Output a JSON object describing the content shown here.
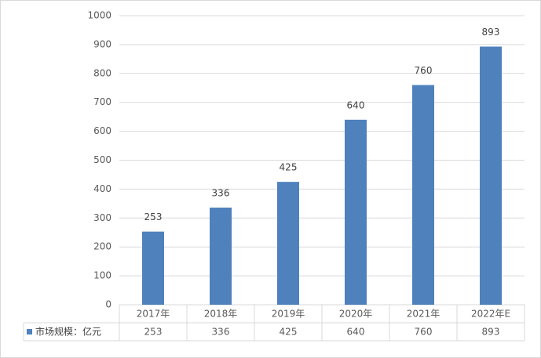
{
  "chart_data": {
    "type": "bar",
    "categories": [
      "2017年",
      "2018年",
      "2019年",
      "2020年",
      "2021年",
      "2022年E"
    ],
    "series": [
      {
        "name": "市场规模：亿元",
        "color": "#4f81bd",
        "values": [
          253,
          336,
          425,
          640,
          760,
          893
        ]
      }
    ],
    "ylim": [
      0,
      1000
    ],
    "yticks": [
      0,
      100,
      200,
      300,
      400,
      500,
      600,
      700,
      800,
      900,
      1000
    ],
    "grid": true,
    "data_table": true
  }
}
